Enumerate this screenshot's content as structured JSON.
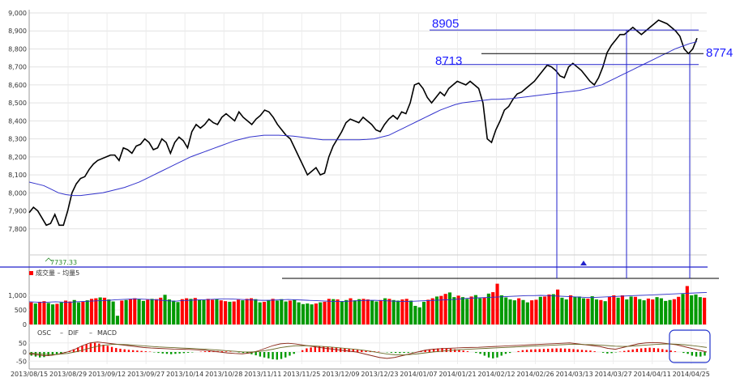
{
  "chart_data": [
    {
      "type": "line",
      "panel": "price",
      "ylim": [
        7700,
        9000
      ],
      "y_ticks": [
        "9,000",
        "8,900",
        "8,800",
        "8,700",
        "8,600",
        "8,500",
        "8,400",
        "8,300",
        "8,200",
        "8,100",
        "8,000",
        "7,900",
        "7,800"
      ],
      "grid": true,
      "series": [
        {
          "values": [
            7890,
            7920,
            7900,
            7860,
            7820,
            7830,
            7880,
            7820,
            7820,
            7900,
            8000,
            8050,
            8080,
            8090,
            8130,
            8160,
            8180,
            8190,
            8200,
            8210,
            8210,
            8180,
            8250,
            8240,
            8220,
            8260,
            8270,
            8300,
            8280,
            8240,
            8250,
            8300,
            8280,
            8220,
            8280,
            8310,
            8290,
            8250,
            8340,
            8380,
            8360,
            8380,
            8410,
            8390,
            8380,
            8420,
            8440,
            8420,
            8400,
            8450,
            8420,
            8400,
            8380,
            8410,
            8430,
            8460,
            8450,
            8420,
            8380,
            8350,
            8320,
            8300,
            8250,
            8200,
            8150,
            8100,
            8120,
            8140,
            8100,
            8110,
            8200,
            8260,
            8300,
            8340,
            8390,
            8410,
            8400,
            8390,
            8420,
            8400,
            8380,
            8350,
            8340,
            8380,
            8410,
            8430,
            8410,
            8450,
            8440,
            8500,
            8600,
            8610,
            8580,
            8530,
            8500,
            8530,
            8560,
            8540,
            8580,
            8600,
            8620,
            8610,
            8600,
            8620,
            8600,
            8580,
            8500,
            8300,
            8280,
            8350,
            8400,
            8460,
            8480,
            8520,
            8550,
            8560,
            8580,
            8600,
            8620,
            8650,
            8680,
            8710,
            8700,
            8680,
            8650,
            8640,
            8700,
            8720,
            8700,
            8680,
            8650,
            8620,
            8600,
            8640,
            8700,
            8780,
            8820,
            8850,
            8880,
            8880,
            8900,
            8920,
            8900,
            8880,
            8900,
            8920,
            8940,
            8960,
            8950,
            8940,
            8920,
            8900,
            8870,
            8800,
            8774,
            8800,
            8860
          ],
          "color": "#000000"
        },
        {
          "values": [
            8060,
            8050,
            8040,
            8020,
            8000,
            7990,
            7985,
            7985,
            7990,
            7995,
            8000,
            8010,
            8020,
            8030,
            8045,
            8060,
            8080,
            8100,
            8120,
            8140,
            8160,
            8180,
            8200,
            8215,
            8230,
            8245,
            8260,
            8275,
            8290,
            8300,
            8310,
            8315,
            8320,
            8320,
            8320,
            8318,
            8315,
            8310,
            8305,
            8300,
            8295,
            8295,
            8295,
            8295,
            8295,
            8295,
            8297,
            8300,
            8310,
            8320,
            8340,
            8360,
            8380,
            8400,
            8420,
            8440,
            8460,
            8475,
            8490,
            8500,
            8505,
            8510,
            8515,
            8520,
            8520,
            8522,
            8525,
            8530,
            8535,
            8540,
            8545,
            8550,
            8555,
            8560,
            8565,
            8570,
            8580,
            8590,
            8600,
            8620,
            8640,
            8660,
            8680,
            8700,
            8720,
            8740,
            8760,
            8780,
            8800,
            8815,
            8830,
            8840
          ],
          "color": "#3333cc"
        }
      ],
      "annotations": {
        "low_label": "7737.33",
        "level_a": "8905",
        "level_b": "8713",
        "level_c": "8774"
      }
    },
    {
      "type": "bar",
      "panel": "volume",
      "title": "成交量 – 均量5",
      "ylim": [
        0,
        1500
      ],
      "y_ticks": [
        "1,000",
        "500",
        "0"
      ],
      "values": [
        760,
        720,
        780,
        800,
        740,
        690,
        710,
        760,
        820,
        790,
        840,
        760,
        780,
        830,
        880,
        900,
        930,
        920,
        860,
        790,
        300,
        820,
        840,
        880,
        900,
        860,
        810,
        850,
        880,
        870,
        920,
        1020,
        860,
        820,
        770,
        870,
        900,
        880,
        910,
        850,
        840,
        880,
        850,
        860,
        830,
        800,
        780,
        790,
        850,
        830,
        880,
        900,
        870,
        760,
        780,
        840,
        880,
        820,
        870,
        790,
        820,
        850,
        760,
        700,
        720,
        690,
        720,
        760,
        780,
        880,
        870,
        860,
        800,
        840,
        900,
        830,
        870,
        880,
        860,
        830,
        790,
        840,
        900,
        880,
        840,
        820,
        860,
        880,
        820,
        640,
        590,
        780,
        850,
        900,
        960,
        980,
        1050,
        1100,
        940,
        990,
        940,
        880,
        960,
        1010,
        900,
        920,
        1060,
        1110,
        1400,
        1000,
        930,
        860,
        830,
        900,
        840,
        760,
        830,
        850,
        950,
        960,
        1030,
        1040,
        1200,
        920,
        860,
        1000,
        950,
        960,
        900,
        890,
        970,
        860,
        840,
        800,
        950,
        1000,
        920,
        1000,
        860,
        960,
        950,
        870,
        830,
        890,
        860,
        940,
        900,
        810,
        840,
        870,
        950,
        1050,
        1320,
        1000,
        1030,
        940,
        920
      ],
      "ma_values": [
        780,
        770,
        760,
        770,
        780,
        770,
        760,
        780,
        790,
        800,
        810,
        820,
        830,
        850,
        860,
        870,
        880,
        870,
        860,
        850,
        830,
        810,
        800,
        820,
        830,
        840,
        850,
        860,
        870,
        880,
        880,
        870,
        860,
        850,
        840,
        830,
        830,
        840,
        850,
        860,
        850,
        840,
        830,
        820,
        810,
        800,
        790,
        790,
        800,
        810,
        820,
        830,
        830,
        820,
        810,
        800,
        790,
        790,
        800,
        810,
        820,
        830,
        840,
        850,
        860,
        880,
        900,
        910,
        920,
        930,
        940,
        950,
        960,
        970,
        980,
        990,
        990,
        1000,
        990,
        980,
        970,
        960,
        950,
        940,
        930,
        930,
        940,
        950,
        960,
        970,
        980,
        990,
        1000,
        1010,
        1020,
        1030,
        1040,
        1050,
        1060,
        1070,
        1080,
        1090,
        1100
      ],
      "up_color": "#ff0000",
      "down_color": "#009900"
    },
    {
      "type": "bar",
      "panel": "macd",
      "legend": [
        "OSC",
        "DIF",
        "MACD"
      ],
      "ylim": [
        -60,
        60
      ],
      "y_ticks": [
        "50",
        "0",
        "-50"
      ],
      "values": [
        -20,
        -25,
        -30,
        -28,
        -22,
        -18,
        -15,
        -10,
        -5,
        5,
        15,
        25,
        35,
        42,
        48,
        50,
        46,
        40,
        34,
        28,
        22,
        18,
        15,
        12,
        10,
        8,
        6,
        4,
        2,
        -2,
        -5,
        -8,
        -10,
        -12,
        -10,
        -8,
        -6,
        -4,
        -2,
        0,
        2,
        4,
        5,
        6,
        5,
        4,
        3,
        2,
        0,
        -2,
        -5,
        -8,
        -12,
        -18,
        -25,
        -30,
        -35,
        -40,
        -42,
        -38,
        -30,
        -20,
        -10,
        0,
        10,
        20,
        25,
        30,
        32,
        30,
        28,
        26,
        24,
        22,
        20,
        18,
        15,
        12,
        10,
        8,
        6,
        4,
        2,
        0,
        -2,
        -4,
        -5,
        -6,
        -5,
        -4,
        -2,
        0,
        5,
        10,
        15,
        18,
        20,
        22,
        20,
        18,
        15,
        12,
        8,
        4,
        0,
        -5,
        -10,
        -20,
        -30,
        -35,
        -30,
        -20,
        -10,
        -5,
        0,
        5,
        10,
        12,
        14,
        15,
        16,
        17,
        18,
        19,
        20,
        20,
        19,
        18,
        16,
        14,
        12,
        10,
        8,
        4,
        0,
        -4,
        -8,
        -6,
        -2,
        2,
        6,
        10,
        14,
        18,
        20,
        22,
        24,
        22,
        20,
        16,
        12,
        8,
        4,
        0,
        -5,
        -10,
        -20,
        -25,
        -25,
        -20
      ],
      "dif_values": [
        -10,
        -15,
        -20,
        -18,
        -10,
        0,
        15,
        35,
        50,
        55,
        50,
        45,
        40,
        35,
        30,
        25,
        22,
        20,
        18,
        16,
        15,
        14,
        12,
        10,
        5,
        0,
        -5,
        -8,
        -10,
        -5,
        5,
        20,
        35,
        45,
        48,
        44,
        38,
        32,
        26,
        20,
        15,
        10,
        5,
        0,
        -10,
        -20,
        -30,
        -35,
        -30,
        -20,
        -10,
        0,
        10,
        15,
        18,
        20,
        22,
        24,
        25,
        26,
        28,
        30,
        32,
        34,
        36,
        38,
        40,
        42,
        44,
        46,
        48,
        50,
        45,
        40,
        35,
        30,
        20,
        15,
        25,
        35,
        45,
        50,
        52,
        50,
        45,
        40,
        30,
        20,
        10,
        0
      ],
      "macd_values": [
        -5,
        -8,
        -12,
        -14,
        -12,
        -8,
        0,
        10,
        22,
        32,
        38,
        42,
        42,
        40,
        37,
        34,
        31,
        28,
        26,
        24,
        22,
        20,
        18,
        16,
        13,
        10,
        7,
        4,
        1,
        0,
        2,
        8,
        15,
        24,
        30,
        34,
        35,
        34,
        32,
        29,
        26,
        22,
        18,
        14,
        9,
        3,
        -4,
        -11,
        -15,
        -16,
        -14,
        -10,
        -5,
        0,
        4,
        8,
        11,
        14,
        16,
        18,
        20,
        22,
        24,
        26,
        28,
        30,
        32,
        34,
        36,
        38,
        40,
        42,
        42,
        41,
        40,
        38,
        35,
        32,
        31,
        32,
        35,
        38,
        41,
        43,
        44,
        43,
        40,
        36,
        31,
        25
      ],
      "up_color": "#ff0000",
      "down_color": "#009900"
    }
  ],
  "x_labels": [
    "2013/08/15",
    "2013/08/29",
    "2013/09/12",
    "2013/09/27",
    "2013/10/14",
    "2013/10/28",
    "2013/11/11",
    "2013/11/25",
    "2013/12/09",
    "2013/12/23",
    "2014/01/07",
    "2014/01/21",
    "2014/02/12",
    "2014/02/26",
    "2014/03/13",
    "2014/03/27",
    "2014/04/11",
    "2014/04/25"
  ]
}
